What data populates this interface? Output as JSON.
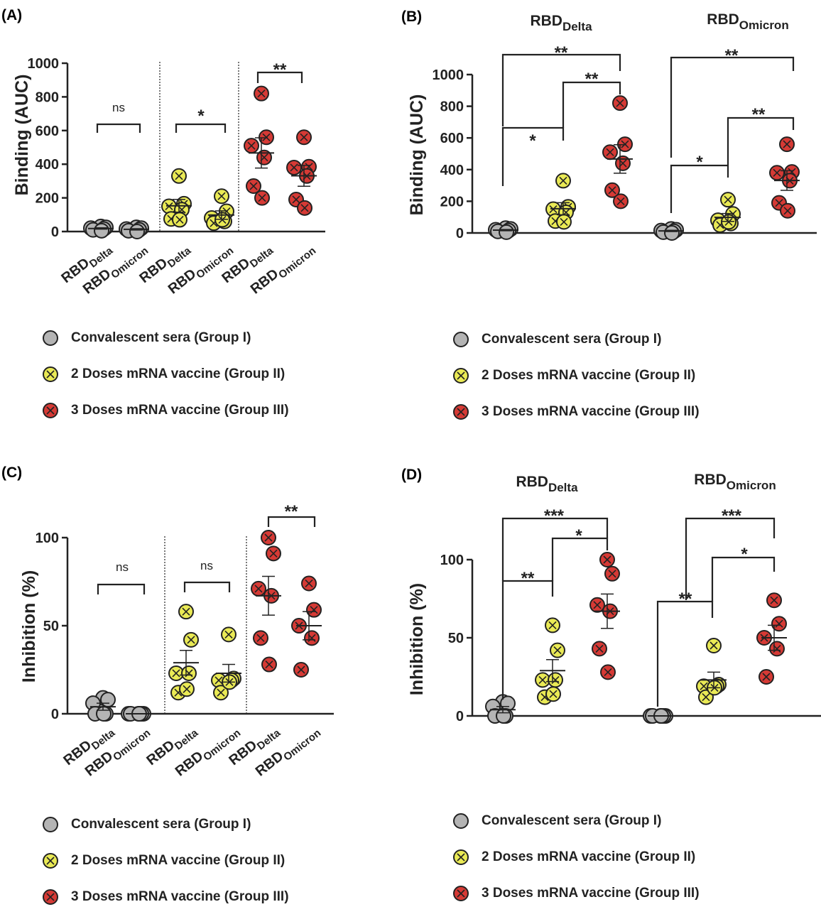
{
  "colors": {
    "group_I": "#b4b4b4",
    "group_II": "#eaea55",
    "group_III": "#d63a35",
    "axis": "#222222"
  },
  "legend_entries": [
    "Convalescent sera (Group I)",
    "2 Doses mRNA vaccine (Group II)",
    "3 Doses mRNA vaccine (Group III)"
  ],
  "chart_data": [
    {
      "panel": "(A)",
      "type": "scatter",
      "ylabel": "Binding (AUC)",
      "ylim": [
        0,
        1000
      ],
      "yticks": [
        "0",
        "200",
        "400",
        "600",
        "800",
        "1000"
      ],
      "categories": [
        {
          "base": "RBD",
          "sub": "Delta",
          "group": "I"
        },
        {
          "base": "RBD",
          "sub": "Omicron",
          "group": "I"
        },
        {
          "base": "RBD",
          "sub": "Delta",
          "group": "II"
        },
        {
          "base": "RBD",
          "sub": "Omicron",
          "group": "II"
        },
        {
          "base": "RBD",
          "sub": "Delta",
          "group": "III"
        },
        {
          "base": "RBD",
          "sub": "Omicron",
          "group": "III"
        }
      ],
      "values": [
        [
          30,
          25,
          20,
          15,
          10,
          5
        ],
        [
          25,
          20,
          15,
          10,
          5,
          0
        ],
        [
          330,
          165,
          150,
          130,
          75,
          70
        ],
        [
          210,
          120,
          80,
          60,
          50,
          70
        ],
        [
          820,
          560,
          510,
          440,
          270,
          200
        ],
        [
          560,
          385,
          380,
          330,
          190,
          140
        ]
      ],
      "means": [
        18,
        13,
        153,
        98,
        467,
        331
      ],
      "sem": [
        4,
        4,
        38,
        25,
        90,
        62
      ],
      "comparisons": [
        {
          "a": 0,
          "b": 1,
          "label": "ns"
        },
        {
          "a": 2,
          "b": 3,
          "label": "*"
        },
        {
          "a": 4,
          "b": 5,
          "label": "**"
        }
      ]
    },
    {
      "panel": "(B)",
      "type": "scatter",
      "ylabel": "Binding (AUC)",
      "ylim": [
        0,
        1000
      ],
      "yticks": [
        "0",
        "200",
        "400",
        "600",
        "800",
        "1000"
      ],
      "group_titles": [
        {
          "base": "RBD",
          "sub": "Delta"
        },
        {
          "base": "RBD",
          "sub": "Omicron"
        }
      ],
      "categories": [
        {
          "group": "I"
        },
        {
          "group": "II"
        },
        {
          "group": "III"
        },
        {
          "group": "I"
        },
        {
          "group": "II"
        },
        {
          "group": "III"
        }
      ],
      "values": [
        [
          30,
          25,
          20,
          15,
          10,
          5
        ],
        [
          330,
          165,
          150,
          130,
          75,
          70
        ],
        [
          820,
          560,
          510,
          440,
          270,
          200
        ],
        [
          25,
          20,
          15,
          10,
          5,
          0
        ],
        [
          210,
          120,
          80,
          60,
          50,
          70
        ],
        [
          560,
          385,
          380,
          330,
          190,
          140
        ]
      ],
      "means": [
        18,
        153,
        467,
        13,
        98,
        331
      ],
      "sem": [
        4,
        38,
        90,
        4,
        25,
        62
      ],
      "comparisons": [
        {
          "a": 0,
          "b": 1,
          "label": "*"
        },
        {
          "a": 1,
          "b": 2,
          "label": "**"
        },
        {
          "a": 0,
          "b": 2,
          "label": "**"
        },
        {
          "a": 3,
          "b": 4,
          "label": "*"
        },
        {
          "a": 4,
          "b": 5,
          "label": "**"
        },
        {
          "a": 3,
          "b": 5,
          "label": "**"
        }
      ]
    },
    {
      "panel": "(C)",
      "type": "scatter",
      "ylabel": "Inhibition (%)",
      "ylim": [
        0,
        100
      ],
      "yticks": [
        "0",
        "50",
        "100"
      ],
      "categories": [
        {
          "base": "RBD",
          "sub": "Delta",
          "group": "I"
        },
        {
          "base": "RBD",
          "sub": "Omicron",
          "group": "I"
        },
        {
          "base": "RBD",
          "sub": "Delta",
          "group": "II"
        },
        {
          "base": "RBD",
          "sub": "Omicron",
          "group": "II"
        },
        {
          "base": "RBD",
          "sub": "Delta",
          "group": "III"
        },
        {
          "base": "RBD",
          "sub": "Omicron",
          "group": "III"
        }
      ],
      "values": [
        [
          9,
          8,
          6,
          0,
          0,
          0
        ],
        [
          0,
          0,
          0,
          0,
          0,
          0
        ],
        [
          58,
          42,
          23,
          23,
          12,
          14
        ],
        [
          45,
          20,
          19,
          19,
          12,
          18
        ],
        [
          100,
          91,
          71,
          67,
          43,
          28
        ],
        [
          74,
          59,
          50,
          43,
          25
        ]
      ],
      "means": [
        4,
        0,
        29,
        23,
        67,
        50
      ],
      "sem": [
        2,
        0,
        7,
        5,
        11,
        8
      ],
      "comparisons": [
        {
          "a": 0,
          "b": 1,
          "label": "ns"
        },
        {
          "a": 2,
          "b": 3,
          "label": "ns"
        },
        {
          "a": 4,
          "b": 5,
          "label": "**"
        }
      ]
    },
    {
      "panel": "(D)",
      "type": "scatter",
      "ylabel": "Inhibition (%)",
      "ylim": [
        0,
        100
      ],
      "yticks": [
        "0",
        "50",
        "100"
      ],
      "group_titles": [
        {
          "base": "RBD",
          "sub": "Delta"
        },
        {
          "base": "RBD",
          "sub": "Omicron"
        }
      ],
      "categories": [
        {
          "group": "I"
        },
        {
          "group": "II"
        },
        {
          "group": "III"
        },
        {
          "group": "I"
        },
        {
          "group": "II"
        },
        {
          "group": "III"
        }
      ],
      "values": [
        [
          9,
          8,
          6,
          0,
          0,
          0
        ],
        [
          58,
          42,
          23,
          23,
          12,
          14
        ],
        [
          100,
          91,
          71,
          67,
          43,
          28
        ],
        [
          0,
          0,
          0,
          0,
          0,
          0
        ],
        [
          45,
          20,
          19,
          19,
          12,
          18
        ],
        [
          74,
          59,
          50,
          43,
          25
        ]
      ],
      "means": [
        4,
        29,
        67,
        0,
        23,
        50
      ],
      "sem": [
        2,
        7,
        11,
        0,
        5,
        8
      ],
      "comparisons": [
        {
          "a": 0,
          "b": 1,
          "label": "**"
        },
        {
          "a": 1,
          "b": 2,
          "label": "*"
        },
        {
          "a": 0,
          "b": 2,
          "label": "***"
        },
        {
          "a": 3,
          "b": 4,
          "label": "**"
        },
        {
          "a": 4,
          "b": 5,
          "label": "*"
        },
        {
          "a": 3,
          "b": 5,
          "label": "***"
        }
      ]
    }
  ]
}
